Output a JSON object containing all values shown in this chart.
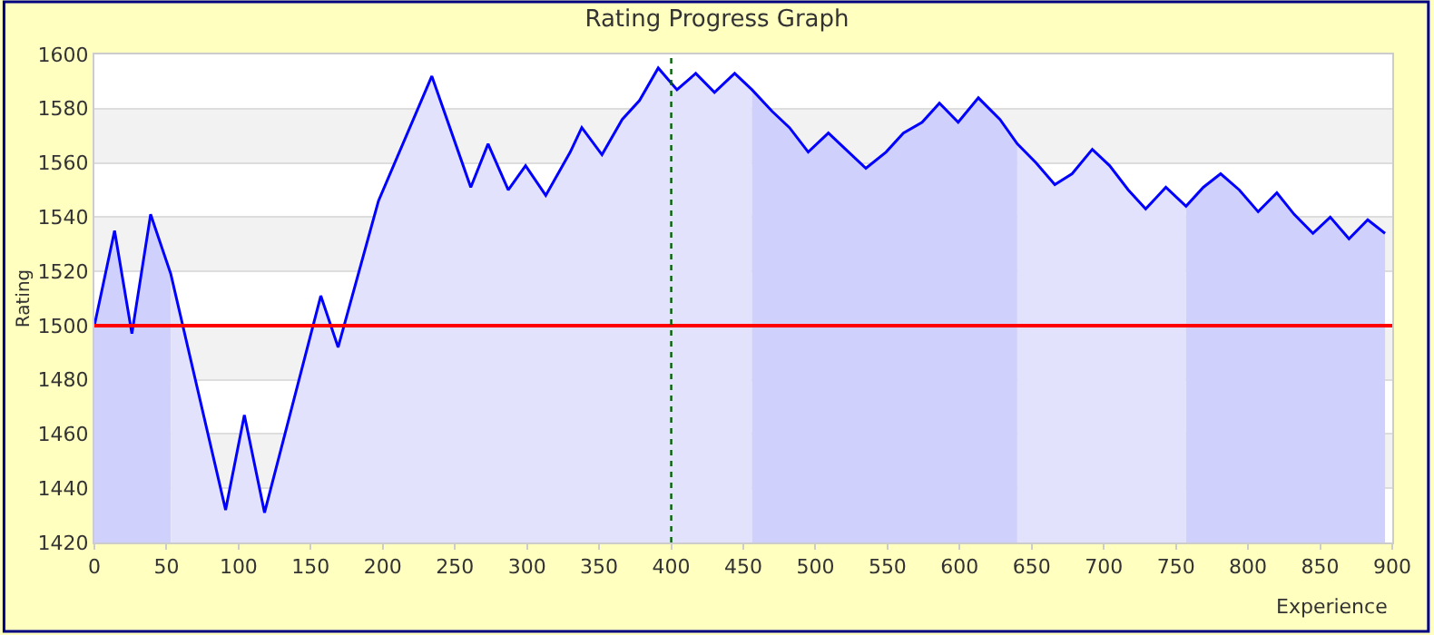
{
  "chart_data": {
    "type": "line",
    "title": "Rating Progress Graph",
    "xlabel": "Experience",
    "ylabel": "Rating",
    "xlim": [
      0,
      900
    ],
    "xticks": [
      0,
      50,
      100,
      150,
      200,
      250,
      300,
      350,
      400,
      450,
      500,
      550,
      600,
      650,
      700,
      750,
      800,
      850,
      900
    ],
    "ylim": [
      1420,
      1600
    ],
    "yticks": [
      1420,
      1440,
      1460,
      1480,
      1500,
      1520,
      1540,
      1560,
      1580,
      1600
    ],
    "grid": "y",
    "marker": "none",
    "line_style": "solid",
    "series": [
      {
        "type": "area",
        "color": "#d0d0fc",
        "x": [
          0,
          14,
          26,
          39,
          53
        ],
        "values": [
          1500,
          1535,
          1497,
          1541,
          1519
        ]
      },
      {
        "type": "area",
        "color": "#e2e2fc",
        "x": [
          53,
          91,
          104,
          118,
          157,
          169,
          197,
          234,
          261,
          273,
          287,
          299,
          313,
          330,
          338,
          352,
          366,
          378,
          391,
          404,
          417,
          430,
          444,
          456
        ],
        "values": [
          1519,
          1432,
          1467,
          1431,
          1511,
          1492,
          1546,
          1592,
          1551,
          1567,
          1550,
          1559,
          1548,
          1564,
          1573,
          1563,
          1576,
          1583,
          1595,
          1587,
          1593,
          1586,
          1593,
          1587
        ]
      },
      {
        "type": "area",
        "color": "#d0d0fc",
        "x": [
          456,
          470,
          482,
          495,
          509,
          521,
          535,
          549,
          561,
          574,
          586,
          599,
          613,
          628,
          640
        ],
        "values": [
          1587,
          1579,
          1573,
          1564,
          1571,
          1565,
          1558,
          1564,
          1571,
          1575,
          1582,
          1575,
          1584,
          1576,
          1567
        ]
      },
      {
        "type": "area",
        "color": "#e2e2fc",
        "x": [
          640,
          653,
          666,
          678,
          692,
          704,
          717,
          729,
          743,
          757
        ],
        "values": [
          1567,
          1560,
          1552,
          1556,
          1565,
          1559,
          1550,
          1543,
          1551,
          1544
        ]
      },
      {
        "type": "area",
        "color": "#d0d0fc",
        "x": [
          757,
          769,
          781,
          794,
          807,
          820,
          832,
          845,
          857,
          870,
          883,
          895
        ],
        "values": [
          1544,
          1551,
          1556,
          1550,
          1542,
          1549,
          1541,
          1534,
          1540,
          1532,
          1539,
          1534
        ]
      },
      {
        "color": "#0000ff",
        "x": [
          0,
          14,
          26,
          39,
          53,
          91,
          104,
          118,
          157,
          169,
          197,
          234,
          261,
          273,
          287,
          299,
          313,
          330,
          338,
          352,
          366,
          378,
          391,
          404,
          417,
          430,
          444,
          456,
          470,
          482,
          495,
          509,
          521,
          535,
          549,
          561,
          574,
          586,
          599,
          613,
          628,
          640,
          653,
          666,
          678,
          692,
          704,
          717,
          729,
          743,
          757,
          769,
          781,
          794,
          807,
          820,
          832,
          845,
          857,
          870,
          883,
          895
        ],
        "values": [
          1500,
          1535,
          1497,
          1541,
          1519,
          1432,
          1467,
          1431,
          1511,
          1492,
          1546,
          1592,
          1551,
          1567,
          1550,
          1559,
          1548,
          1564,
          1573,
          1563,
          1576,
          1583,
          1595,
          1587,
          1593,
          1586,
          1593,
          1587,
          1579,
          1573,
          1564,
          1571,
          1565,
          1558,
          1564,
          1571,
          1575,
          1582,
          1575,
          1584,
          1576,
          1567,
          1560,
          1552,
          1556,
          1565,
          1559,
          1550,
          1543,
          1551,
          1544,
          1551,
          1556,
          1550,
          1542,
          1549,
          1541,
          1534,
          1540,
          1532,
          1539,
          1534
        ]
      }
    ],
    "bands": [
      {
        "axis": "y",
        "from": 1560,
        "to": 1580,
        "color": "#f2f2f2"
      },
      {
        "axis": "y",
        "from": 1520,
        "to": 1540,
        "color": "#f2f2f2"
      },
      {
        "axis": "y",
        "from": 1480,
        "to": 1500,
        "color": "#f2f2f2"
      },
      {
        "axis": "y",
        "from": 1440,
        "to": 1460,
        "color": "#f2f2f2"
      }
    ],
    "ref_lines": [
      {
        "axis": "y",
        "value": 1500,
        "color": "#ff0000",
        "line_style": "solid"
      },
      {
        "axis": "x",
        "value": 400,
        "color": "#006400",
        "line_style": "dotted"
      }
    ]
  }
}
